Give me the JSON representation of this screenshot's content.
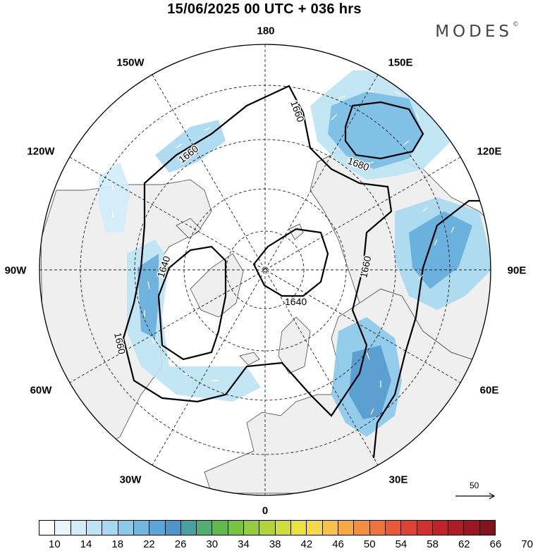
{
  "title": "15/06/2025  00 UTC  + 036 hrs",
  "brand": "MODES",
  "brand_mark": "©",
  "longitude_labels": {
    "top": "180",
    "bottom": "0",
    "left": "90W",
    "right": "90E",
    "upper_left_150": "150W",
    "upper_left_120": "120W",
    "upper_right_150": "150E",
    "upper_right_120": "120E",
    "lower_left_60": "60W",
    "lower_left_30": "30W",
    "lower_right_60": "60E",
    "lower_right_30": "30E"
  },
  "contour_labels": [
    "1660",
    "1660",
    "1680",
    "1640",
    "1640",
    "1660",
    "1660"
  ],
  "vector_key": {
    "value": "50"
  },
  "colorbar": {
    "colors": [
      "#ffffff",
      "#e8f5fb",
      "#d2ecf8",
      "#bde3f4",
      "#a6d8f0",
      "#8ac9ea",
      "#70b8e2",
      "#5aa6d8",
      "#4d95cc",
      "#47a1a0",
      "#4fae71",
      "#5dbb4a",
      "#77c43e",
      "#93cc3c",
      "#b1d43a",
      "#cfdc3a",
      "#ebe23f",
      "#f7d84a",
      "#f8c24a",
      "#f7a947",
      "#f48e41",
      "#ef743c",
      "#e85a37",
      "#de4232",
      "#d1302e",
      "#c0242a",
      "#ae1c26",
      "#9a1622",
      "#86121e"
    ],
    "labels": [
      "10",
      "14",
      "18",
      "22",
      "26",
      "30",
      "34",
      "38",
      "42",
      "46",
      "50",
      "54",
      "58",
      "62",
      "66",
      "70"
    ]
  }
}
